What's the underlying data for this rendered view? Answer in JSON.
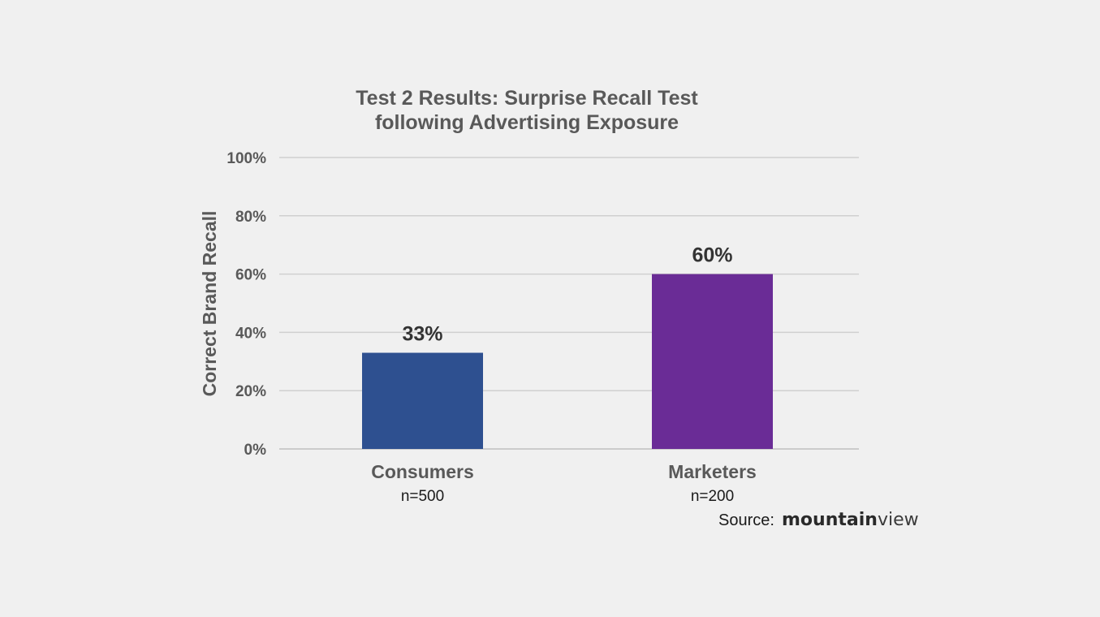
{
  "chart_data": {
    "type": "bar",
    "title": [
      "Test 2 Results: Surprise Recall Test",
      "following Advertising Exposure"
    ],
    "xlabel": "",
    "ylabel": "Correct Brand Recall",
    "ylim": [
      0,
      100
    ],
    "y_ticks": [
      "0%",
      "20%",
      "40%",
      "60%",
      "80%",
      "100%"
    ],
    "grid": true,
    "categories": [
      "Consumers",
      "Marketers"
    ],
    "category_sublabels": [
      "n=500",
      "n=200"
    ],
    "values": [
      33,
      60
    ],
    "data_labels": [
      "33%",
      "60%"
    ],
    "colors": [
      "#2e5090",
      "#6a2c96"
    ]
  },
  "source": {
    "label": "Source:",
    "logo_bold": "mountain",
    "logo_light": "view"
  }
}
